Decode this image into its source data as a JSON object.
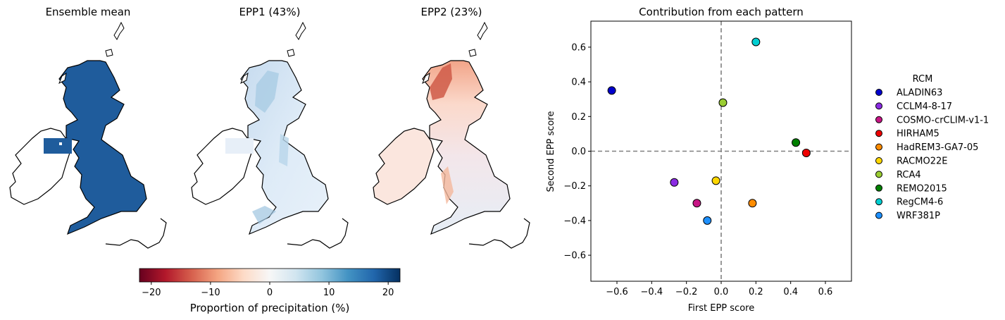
{
  "maps": {
    "panels": [
      {
        "title": "Ensemble mean"
      },
      {
        "title": "EPP1 (43%)"
      },
      {
        "title": "EPP2 (23%)"
      }
    ],
    "colorbar": {
      "label": "Proportion of precipitation (%)",
      "ticks": [
        "−20",
        "−10",
        "0",
        "10",
        "20"
      ],
      "tick_values": [
        -20,
        -10,
        0,
        10,
        20
      ],
      "range": [
        -22,
        22
      ],
      "colormap": "RdBu",
      "colors": [
        "#67001f",
        "#b2182b",
        "#d6604d",
        "#f4a582",
        "#fddbc7",
        "#f7f7f7",
        "#d1e5f0",
        "#92c5de",
        "#4393c3",
        "#2166ac",
        "#053061"
      ]
    }
  },
  "chart_data": {
    "type": "scatter",
    "title": "Contribution from each pattern",
    "xlabel": "First EPP score",
    "ylabel": "Second EPP score",
    "xlim": [
      -0.75,
      0.75
    ],
    "ylim": [
      -0.75,
      0.75
    ],
    "xticks": [
      -0.6,
      -0.4,
      -0.2,
      0.0,
      0.2,
      0.4,
      0.6
    ],
    "xtick_labels": [
      "−0.6",
      "−0.4",
      "−0.2",
      "0.0",
      "0.2",
      "0.4",
      "0.6"
    ],
    "yticks": [
      -0.6,
      -0.4,
      -0.2,
      0.0,
      0.2,
      0.4,
      0.6
    ],
    "ytick_labels": [
      "−0.6",
      "−0.4",
      "−0.2",
      "0.0",
      "0.2",
      "0.4",
      "0.6"
    ],
    "reference_lines": {
      "x": 0,
      "y": 0,
      "style": "dashed",
      "color": "#808080"
    },
    "grid": false,
    "legend": {
      "title": "RCM",
      "placement": "right, outside"
    },
    "series": [
      {
        "name": "ALADIN63",
        "color": "#0000cd",
        "x": -0.63,
        "y": 0.35
      },
      {
        "name": "CCLM4-8-17",
        "color": "#8a2be2",
        "x": -0.27,
        "y": -0.18
      },
      {
        "name": "COSMO-crCLIM-v1-1",
        "color": "#c71585",
        "x": -0.14,
        "y": -0.3
      },
      {
        "name": "HIRHAM5",
        "color": "#ee0000",
        "x": 0.49,
        "y": -0.01
      },
      {
        "name": "HadREM3-GA7-05",
        "color": "#ff8c00",
        "x": 0.18,
        "y": -0.3
      },
      {
        "name": "RACMO22E",
        "color": "#ffd700",
        "x": -0.03,
        "y": -0.17
      },
      {
        "name": "RCA4",
        "color": "#9acd32",
        "x": 0.01,
        "y": 0.28
      },
      {
        "name": "REMO2015",
        "color": "#008000",
        "x": 0.43,
        "y": 0.05
      },
      {
        "name": "RegCM4-6",
        "color": "#00ced1",
        "x": 0.2,
        "y": 0.63
      },
      {
        "name": "WRF381P",
        "color": "#1e90ff",
        "x": -0.08,
        "y": -0.4
      }
    ]
  }
}
